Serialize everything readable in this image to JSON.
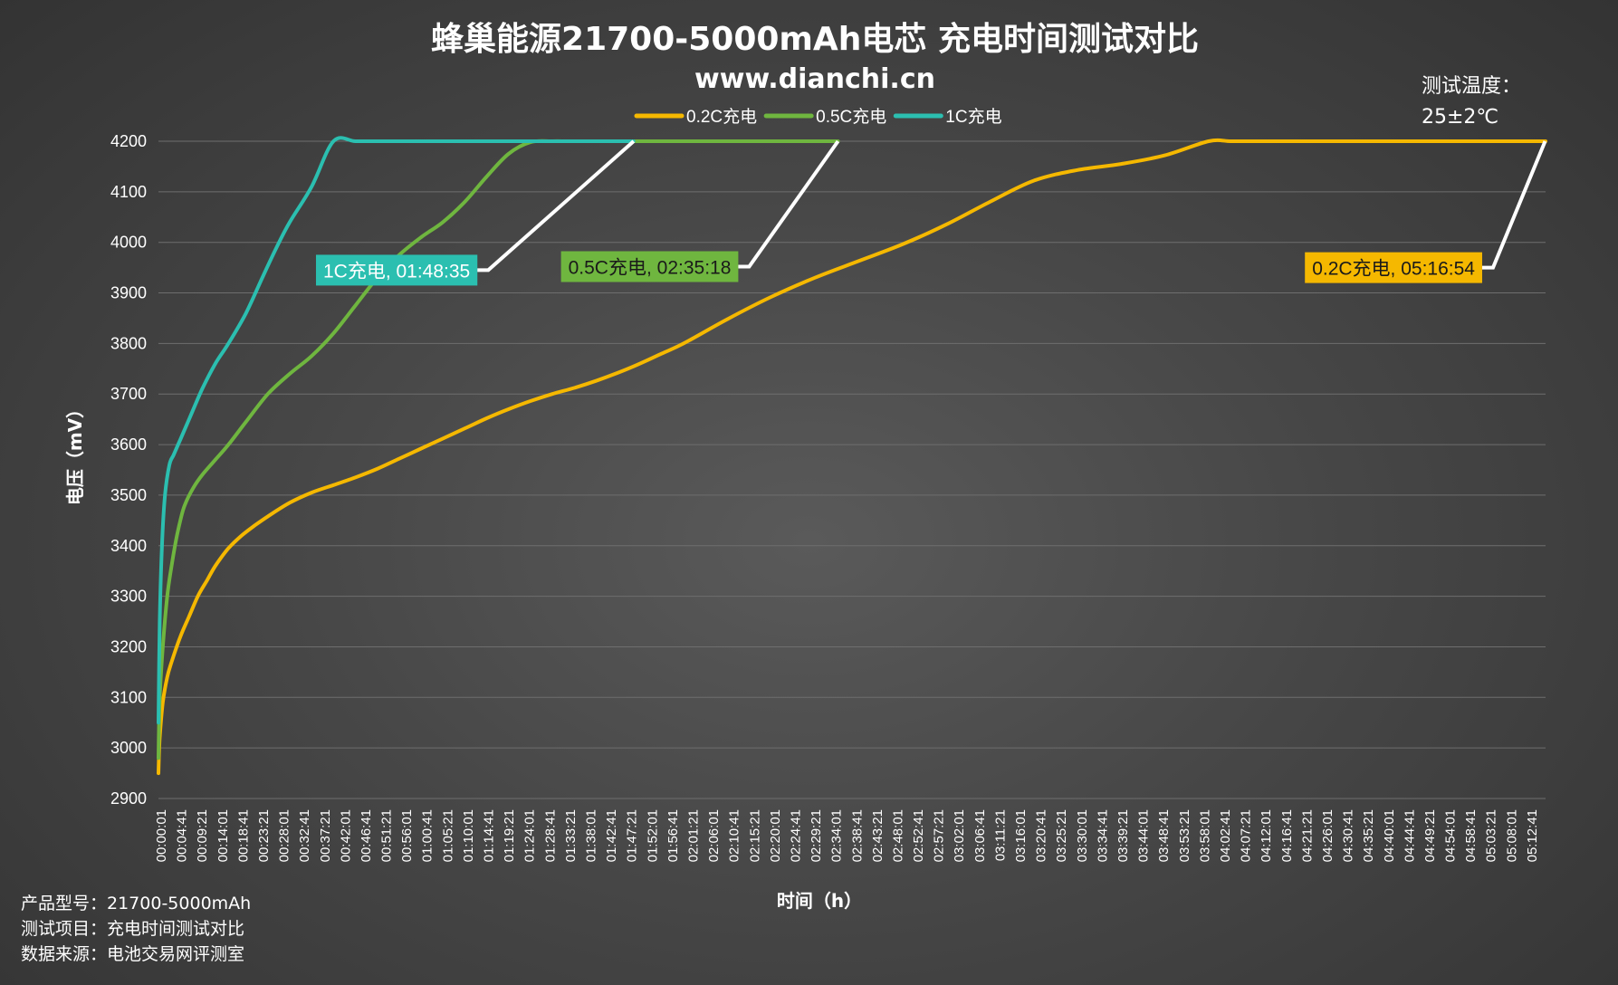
{
  "chart_data": {
    "type": "line",
    "title": "蜂巢能源21700-5000mAh电芯 充电时间测试对比",
    "subtitle": "www.dianchi.cn",
    "xlabel": "时间（h）",
    "ylabel": "电压（mV）",
    "ylim": [
      2900,
      4200
    ],
    "yticks": [
      2900,
      3000,
      3100,
      3200,
      3300,
      3400,
      3500,
      3600,
      3700,
      3800,
      3900,
      4000,
      4100,
      4200
    ],
    "x_unit": "minutes",
    "xlim_minutes": [
      0,
      317
    ],
    "xtick_labels": [
      "00:00:01",
      "00:04:41",
      "00:09:21",
      "00:14:01",
      "00:18:41",
      "00:23:21",
      "00:28:01",
      "00:32:41",
      "00:37:21",
      "00:42:01",
      "00:46:41",
      "00:51:21",
      "00:56:01",
      "01:00:41",
      "01:05:21",
      "01:10:01",
      "01:14:41",
      "01:19:21",
      "01:24:01",
      "01:28:41",
      "01:33:21",
      "01:38:01",
      "01:42:41",
      "01:47:21",
      "01:52:01",
      "01:56:41",
      "02:01:21",
      "02:06:01",
      "02:10:41",
      "02:15:21",
      "02:20:01",
      "02:24:41",
      "02:29:21",
      "02:34:01",
      "02:38:41",
      "02:43:21",
      "02:48:01",
      "02:52:41",
      "02:57:21",
      "03:02:01",
      "03:06:41",
      "03:11:21",
      "03:16:01",
      "03:20:41",
      "03:25:21",
      "03:30:01",
      "03:34:41",
      "03:39:21",
      "03:44:01",
      "03:48:41",
      "03:53:21",
      "03:58:01",
      "04:02:41",
      "04:07:21",
      "04:12:01",
      "04:16:41",
      "04:21:21",
      "04:26:01",
      "04:30:41",
      "04:35:21",
      "04:40:01",
      "04:44:41",
      "04:49:21",
      "04:54:01",
      "04:58:41",
      "05:03:21",
      "05:08:01",
      "05:12:41"
    ],
    "grid": true,
    "legend_position": "top",
    "series": [
      {
        "name": "0.2C充电",
        "color": "#f5b800",
        "x": [
          0,
          0.3,
          1,
          2,
          3,
          5,
          7,
          9,
          11,
          13,
          16,
          19,
          22,
          25,
          30,
          35,
          40,
          45,
          50,
          55,
          60,
          65,
          70,
          75,
          80,
          85,
          90,
          95,
          100,
          105,
          110,
          115,
          120,
          130,
          140,
          150,
          160,
          170,
          180,
          190,
          200,
          210,
          220,
          230,
          240,
          245,
          250,
          255,
          260,
          265,
          270,
          275,
          280,
          285,
          290,
          300,
          310,
          317
        ],
        "y": [
          2950,
          3020,
          3090,
          3140,
          3170,
          3220,
          3260,
          3300,
          3330,
          3360,
          3395,
          3420,
          3440,
          3458,
          3485,
          3505,
          3520,
          3535,
          3552,
          3572,
          3592,
          3612,
          3632,
          3652,
          3670,
          3686,
          3700,
          3712,
          3726,
          3742,
          3760,
          3780,
          3800,
          3848,
          3892,
          3930,
          3963,
          3996,
          4035,
          4080,
          4122,
          4143,
          4155,
          4172,
          4200,
          4200,
          4200,
          4200,
          4200,
          4200,
          4200,
          4200,
          4200,
          4200,
          4200,
          4200,
          4200,
          4200
        ]
      },
      {
        "name": "0.5C充电",
        "color": "#6fb63f",
        "x": [
          0,
          0.3,
          1,
          2,
          3,
          4,
          5,
          6,
          8,
          10,
          13,
          16,
          20,
          25,
          30,
          35,
          40,
          45,
          50,
          55,
          60,
          65,
          70,
          75,
          80,
          85,
          90,
          93,
          95,
          100,
          110,
          120,
          130,
          140,
          150,
          155.3
        ],
        "y": [
          2980,
          3100,
          3200,
          3300,
          3360,
          3410,
          3450,
          3480,
          3515,
          3540,
          3570,
          3600,
          3645,
          3700,
          3740,
          3775,
          3820,
          3875,
          3930,
          3975,
          4010,
          4040,
          4080,
          4130,
          4175,
          4198,
          4200,
          4200,
          4200,
          4200,
          4200,
          4200,
          4200,
          4200,
          4200,
          4200
        ]
      },
      {
        "name": "1C充电",
        "color": "#2bbfb0",
        "x": [
          0,
          0.3,
          0.8,
          1.5,
          2.5,
          3.5,
          5,
          7,
          10,
          13,
          16,
          20,
          24,
          27,
          30,
          35,
          40,
          45,
          50,
          55,
          60,
          65,
          70,
          75,
          80,
          85,
          90,
          95,
          100,
          105,
          108.6
        ],
        "y": [
          3050,
          3250,
          3400,
          3500,
          3560,
          3580,
          3610,
          3650,
          3710,
          3760,
          3800,
          3860,
          3935,
          3990,
          4040,
          4110,
          4200,
          4200,
          4200,
          4200,
          4200,
          4200,
          4200,
          4200,
          4200,
          4200,
          4200,
          4200,
          4200,
          4200,
          4200
        ]
      }
    ],
    "annotations": [
      {
        "text": "1C充电, 01:48:35",
        "series": "1C充电",
        "end_minute": 108.6,
        "box_color": "#2bbfb0",
        "text_color": "#ffffff",
        "box_y_mv": 3945,
        "box_x_minute": 36
      },
      {
        "text": "0.5C充电, 02:35:18",
        "series": "0.5C充电",
        "end_minute": 155.3,
        "box_color": "#6fb63f",
        "text_color": "#1a1a1a",
        "box_y_mv": 3952,
        "box_x_minute": 92
      },
      {
        "text": "0.2C充电, 05:16:54",
        "series": "0.2C充电",
        "end_minute": 316.9,
        "box_color": "#f5b800",
        "text_color": "#1a1a1a",
        "box_y_mv": 3950,
        "box_x_minute": 262
      }
    ]
  },
  "temperature": {
    "label": "测试温度：",
    "value": "25±2℃"
  },
  "footer": {
    "model": "产品型号：21700-5000mAh",
    "test_item": "测试项目：充电时间测试对比",
    "source": "数据来源：电池交易网评测室"
  },
  "colors": {
    "grid": "#6e6e6e",
    "text": "#ffffff",
    "leader": "#ffffff"
  }
}
